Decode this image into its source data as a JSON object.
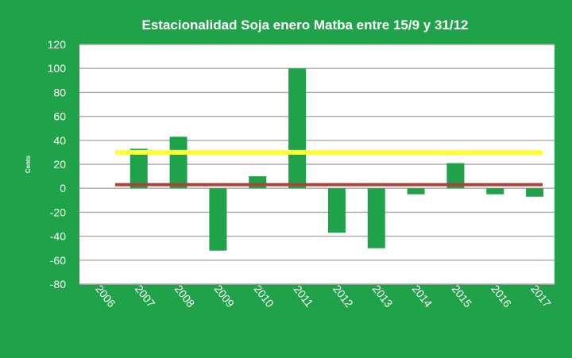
{
  "chart_data": {
    "type": "bar",
    "title": "Estacionalidad Soja enero Matba entre 15/9 y 31/12",
    "ylabel": "Cents",
    "xlabel": "",
    "ylim": [
      -80,
      120
    ],
    "yticks": [
      -80,
      -60,
      -40,
      -20,
      0,
      20,
      40,
      60,
      80,
      100,
      120
    ],
    "categories": [
      "2006",
      "2007",
      "2008",
      "2009",
      "2010",
      "2011",
      "2012",
      "2013",
      "2014",
      "2015",
      "2016",
      "2017"
    ],
    "values": [
      0,
      33,
      43,
      -52,
      10,
      100,
      -37,
      -50,
      -5,
      21,
      -5,
      -7
    ],
    "reference_lines": [
      {
        "value": 30,
        "color": "#FFFF33"
      },
      {
        "value": 3,
        "color": "#B0403A"
      }
    ],
    "grid": true,
    "legend": "none",
    "colors": {
      "background": "#1FA24A",
      "plot_area": "#FFFFFF",
      "bar": "#1FA24A",
      "gridline": "#A8A8A8",
      "text": "#FFFFFF"
    }
  }
}
